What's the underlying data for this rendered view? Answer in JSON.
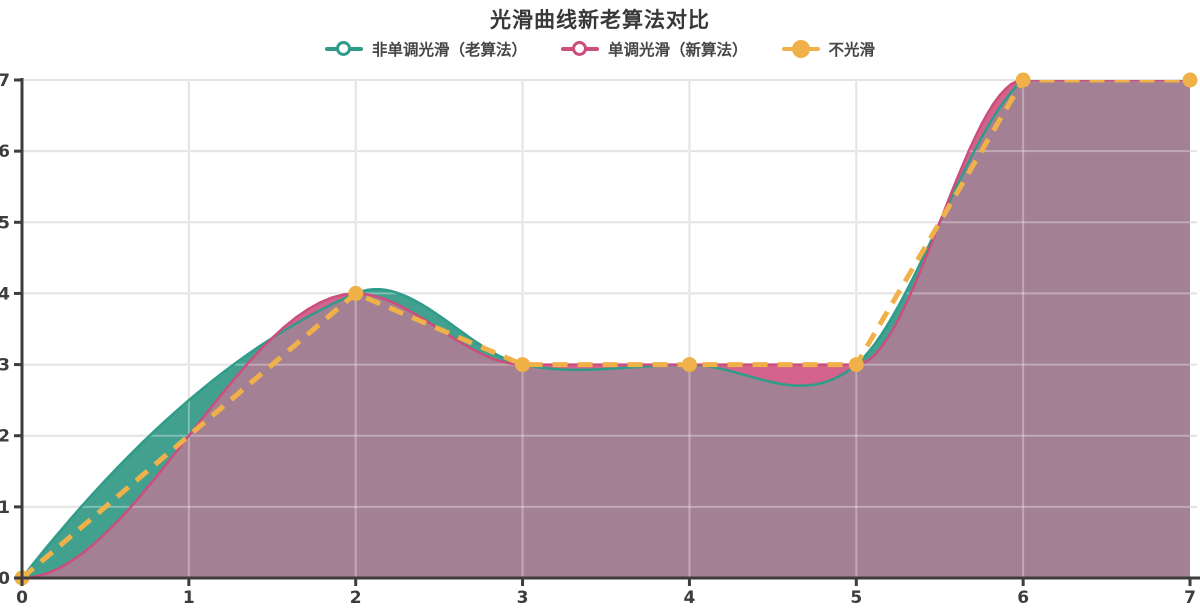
{
  "title": "光滑曲线新老算法对比",
  "legend": {
    "items": [
      {
        "label": "非单调光滑（老算法）",
        "color": "#2f9c89",
        "marker": "hollow-circle"
      },
      {
        "label": "单调光滑（新算法）",
        "color": "#cc4e7d",
        "marker": "hollow-circle"
      },
      {
        "label": "不光滑",
        "color": "#f0b149",
        "marker": "solid-circle"
      }
    ]
  },
  "chart_data": {
    "type": "area",
    "title": "光滑曲线新老算法对比",
    "x": [
      0,
      2,
      3,
      4,
      5,
      6,
      7
    ],
    "series": [
      {
        "name": "非单调光滑（老算法）",
        "values": [
          0,
          4,
          3,
          3,
          3,
          7,
          7
        ],
        "interpolation": "cubic-spline",
        "fill": "#42a08f",
        "stroke": "#2f9c89",
        "dashed": false,
        "markers": false
      },
      {
        "name": "单调光滑（新算法）",
        "values": [
          0,
          4,
          3,
          3,
          3,
          7,
          7
        ],
        "interpolation": "monotone",
        "fill": "#d3628c",
        "stroke": "#cc4e7d",
        "dashed": false,
        "markers": false
      },
      {
        "name": "不光滑",
        "values": [
          0,
          4,
          3,
          3,
          3,
          7,
          7
        ],
        "interpolation": "linear",
        "fill": null,
        "stroke": "#f0b149",
        "dashed": true,
        "markers": true
      }
    ],
    "overlap_fill": "#a38093",
    "xlabel": "",
    "ylabel": "",
    "xlim": [
      0,
      7
    ],
    "ylim": [
      0,
      7
    ],
    "xticks": [
      0,
      1,
      2,
      3,
      4,
      5,
      6,
      7
    ],
    "yticks": [
      0,
      1,
      2,
      3,
      4,
      5,
      6,
      7
    ],
    "grid": true,
    "legend_position": "top",
    "colors": {
      "grid": "#d8d8d8",
      "grid_over_fill": "rgba(255,255,255,0.32)",
      "axis": "#3d3d3d",
      "tick_text": "#3d3d3d",
      "background": "#ffffff"
    }
  }
}
